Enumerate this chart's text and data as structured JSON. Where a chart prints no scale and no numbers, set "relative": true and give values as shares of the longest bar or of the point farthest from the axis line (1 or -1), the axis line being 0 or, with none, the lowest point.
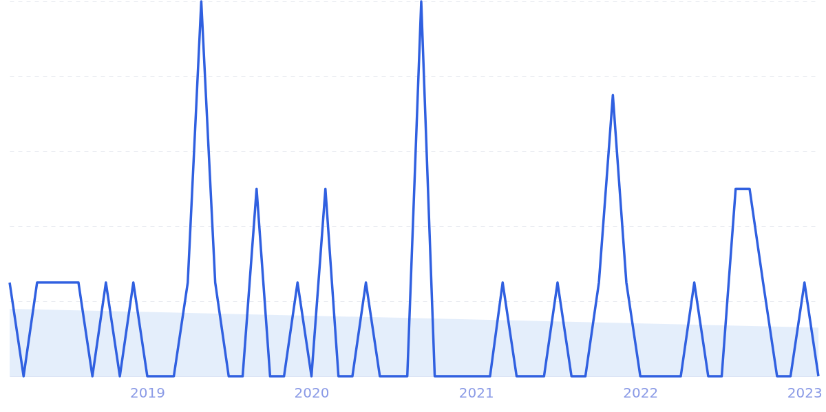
{
  "chart_data": {
    "type": "line",
    "relative": true,
    "grid": "y",
    "marker": "none",
    "line_style": "solid",
    "x": [
      "2018-03",
      "2018-04",
      "2018-05",
      "2018-06",
      "2018-07",
      "2018-08",
      "2018-09",
      "2018-10",
      "2018-11",
      "2018-12",
      "2019-01",
      "2019-02",
      "2019-03",
      "2019-04",
      "2019-05",
      "2019-06",
      "2019-07",
      "2019-08",
      "2019-09",
      "2019-10",
      "2019-11",
      "2019-12",
      "2020-01",
      "2020-02",
      "2020-03",
      "2020-04",
      "2020-05",
      "2020-06",
      "2020-07",
      "2020-08",
      "2020-09",
      "2020-10",
      "2020-11",
      "2020-12",
      "2021-01",
      "2021-02",
      "2021-03",
      "2021-04",
      "2021-05",
      "2021-06",
      "2021-07",
      "2021-08",
      "2021-09",
      "2021-10",
      "2021-11",
      "2021-12",
      "2022-01",
      "2022-02",
      "2022-03",
      "2022-04",
      "2022-05",
      "2022-06",
      "2022-07",
      "2022-08",
      "2022-09",
      "2022-10",
      "2022-11",
      "2022-12",
      "2023-01",
      "2023-02"
    ],
    "xlim": [
      "2018-03",
      "2023-02"
    ],
    "xticks": [
      {
        "value": "2019",
        "label": "2019"
      },
      {
        "value": "2020",
        "label": "2020"
      },
      {
        "value": "2021",
        "label": "2021"
      },
      {
        "value": "2022",
        "label": "2022"
      },
      {
        "value": "2023",
        "label": "2023"
      }
    ],
    "series": [
      {
        "type": "area",
        "color": "#e1ecfb",
        "x": [
          "2018-03",
          "2023-02"
        ],
        "values": [
          0.18,
          0.13
        ]
      },
      {
        "color": "#3060e0",
        "values": [
          0.25,
          0,
          0.25,
          0.25,
          0.25,
          0.25,
          0,
          0.25,
          0,
          0.25,
          0,
          0,
          0,
          0.25,
          1,
          0.25,
          0,
          0,
          0.5,
          0,
          0,
          0.25,
          0,
          0.5,
          0,
          0,
          0.25,
          0,
          0,
          0,
          1,
          0,
          0,
          0,
          0,
          0,
          0.25,
          0,
          0,
          0,
          0.25,
          0,
          0,
          0.25,
          0.75,
          0.25,
          0,
          0,
          0,
          0,
          0.25,
          0,
          0,
          0.5,
          0.5,
          0.25,
          0,
          0,
          0.25,
          0
        ]
      }
    ]
  }
}
